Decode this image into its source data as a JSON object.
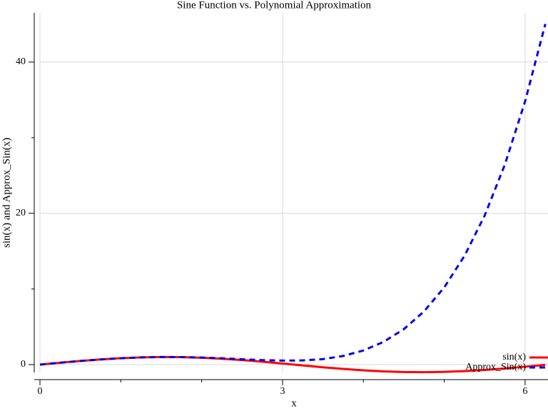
{
  "chart_data": {
    "type": "line",
    "title": "Sine Function vs. Polynomial Approximation",
    "x_label": "x",
    "y_label": "sin(x) and Approx_Sin(x)",
    "x": [
      0,
      0.25,
      0.5,
      0.75,
      1.0,
      1.25,
      1.5,
      1.75,
      2.0,
      2.25,
      2.5,
      2.75,
      3.0,
      3.25,
      3.5,
      3.75,
      4.0,
      4.25,
      4.5,
      4.75,
      5.0,
      5.25,
      5.5,
      5.75,
      6.0,
      6.25
    ],
    "series": [
      {
        "name": "sin(x)",
        "color": "#ff0000",
        "dash": false,
        "values": [
          0,
          0.247,
          0.479,
          0.682,
          0.841,
          0.949,
          0.997,
          0.984,
          0.909,
          0.778,
          0.598,
          0.382,
          0.141,
          -0.108,
          -0.351,
          -0.572,
          -0.757,
          -0.895,
          -0.978,
          -0.999,
          -0.959,
          -0.859,
          -0.706,
          -0.508,
          -0.279,
          -0.033
        ]
      },
      {
        "name": "Approx_Sin(x)",
        "color": "#0000ee",
        "dash": true,
        "values": [
          0,
          0.25,
          0.48,
          0.68,
          0.84,
          0.95,
          1.0,
          0.99,
          0.93,
          0.83,
          0.71,
          0.59,
          0.53,
          0.55,
          0.73,
          1.14,
          1.87,
          3.01,
          4.69,
          7.04,
          10.21,
          14.37,
          19.71,
          26.45,
          34.8,
          45.03
        ]
      }
    ],
    "xlim": [
      0,
      6.283
    ],
    "ylim": [
      -1.04,
      46.5
    ],
    "xticks": [
      0,
      3,
      6
    ],
    "yticks": [
      0,
      20,
      40
    ],
    "xminorticks": [
      1,
      2,
      4,
      5
    ],
    "yminorticks": [
      10,
      30
    ],
    "grid": true,
    "legend": "lower right"
  }
}
